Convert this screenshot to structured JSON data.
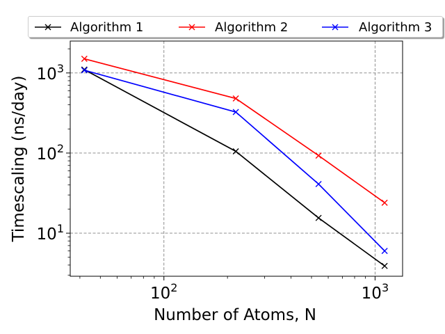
{
  "chart_data": {
    "type": "line",
    "xlabel": "Number of Atoms, N",
    "ylabel": "Timescaling (ns/day)",
    "xscale": "log",
    "yscale": "log",
    "xlim": [
      36,
      1350
    ],
    "ylim": [
      2.9,
      2500
    ],
    "x_ticks": [
      100,
      1000
    ],
    "x_tick_labels": [
      [
        "10",
        "2"
      ],
      [
        "10",
        "3"
      ]
    ],
    "y_ticks": [
      10,
      100,
      1000
    ],
    "y_tick_labels": [
      [
        "10",
        "1"
      ],
      [
        "10",
        "2"
      ],
      [
        "10",
        "3"
      ]
    ],
    "grid": true,
    "legend_position": "top-outside",
    "series": [
      {
        "name": "Algorithm 1",
        "color": "#000000",
        "x": [
          42,
          219,
          540,
          1110
        ],
        "y": [
          1100,
          105,
          15.5,
          3.9
        ]
      },
      {
        "name": "Algorithm 2",
        "color": "#ff0000",
        "x": [
          42,
          219,
          540,
          1110
        ],
        "y": [
          1500,
          480,
          93,
          24
        ]
      },
      {
        "name": "Algorithm 3",
        "color": "#0000ff",
        "x": [
          42,
          219,
          540,
          1110
        ],
        "y": [
          1080,
          325,
          41,
          6
        ]
      }
    ]
  }
}
